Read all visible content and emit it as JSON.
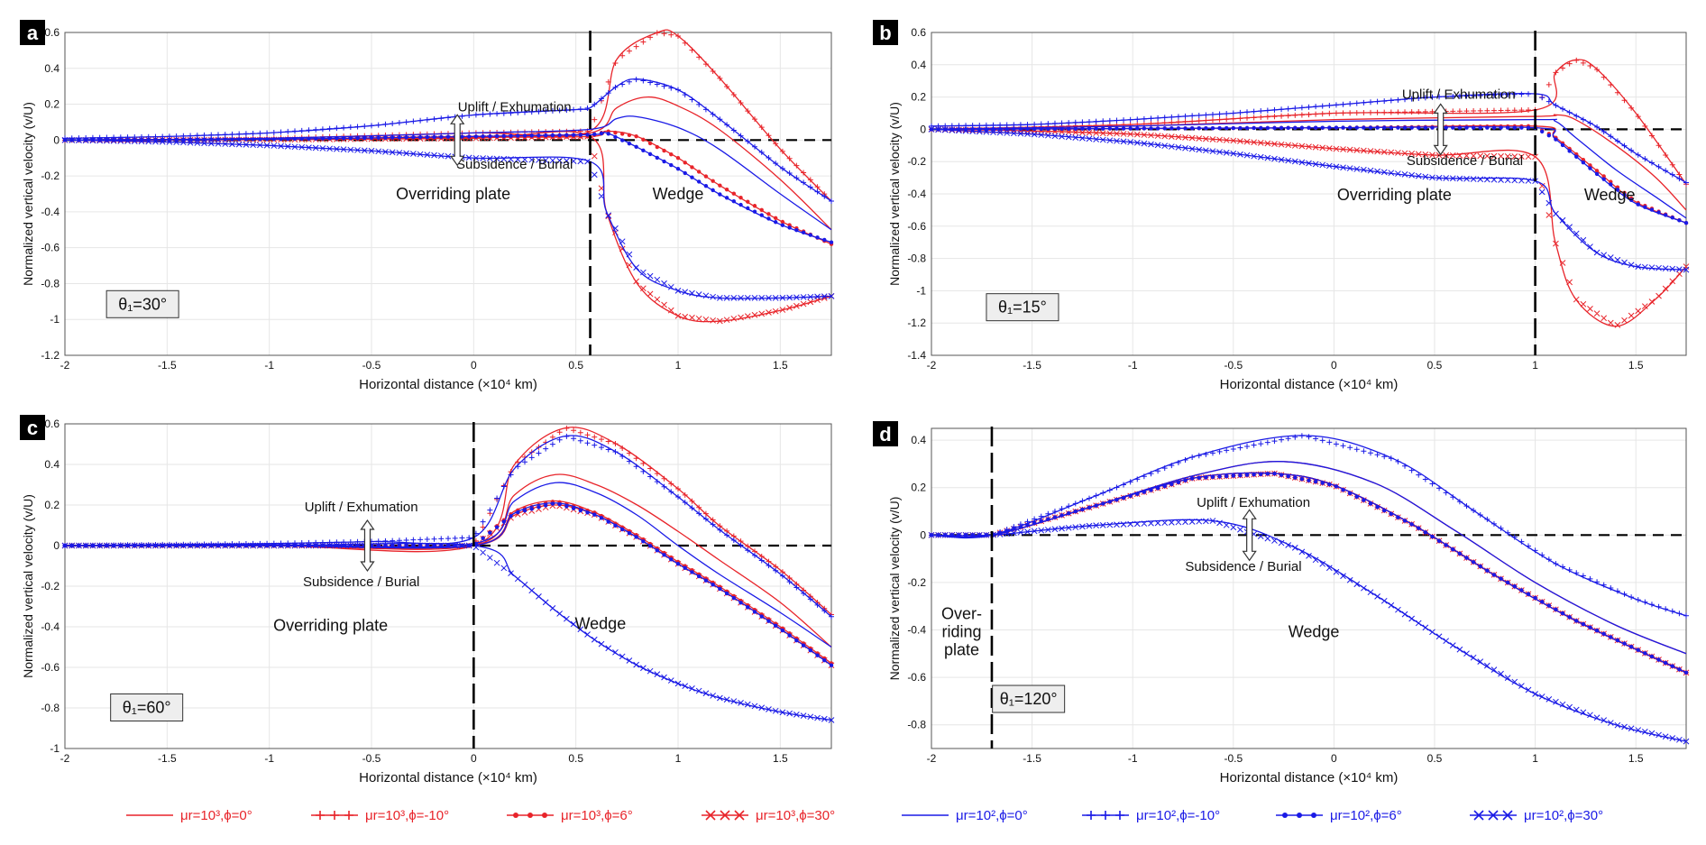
{
  "legend": {
    "entries": [
      {
        "label": "μr=10³,ϕ=0°",
        "color": "#e8242a",
        "marker": "none"
      },
      {
        "label": "μr=10³,ϕ=-10°",
        "color": "#e8242a",
        "marker": "plus"
      },
      {
        "label": "μr=10³,ϕ=6°",
        "color": "#e8242a",
        "marker": "dot"
      },
      {
        "label": "μr=10³,ϕ=30°",
        "color": "#e8242a",
        "marker": "x"
      },
      {
        "label": "μr=10²,ϕ=0°",
        "color": "#1a1ae6",
        "marker": "none"
      },
      {
        "label": "μr=10²,ϕ=-10°",
        "color": "#1a1ae6",
        "marker": "plus"
      },
      {
        "label": "μr=10²,ϕ=6°",
        "color": "#1a1ae6",
        "marker": "dot"
      },
      {
        "label": "μr=10²,ϕ=30°",
        "color": "#1a1ae6",
        "marker": "x"
      }
    ]
  },
  "chart_data": [
    {
      "panel": "a",
      "type": "line",
      "xlabel": "Horizontal distance (×10⁴ km)",
      "ylabel": "Normalized vertical velocity (v/U)",
      "xlim": [
        -2,
        1.75
      ],
      "ylim": [
        -1.2,
        0.6
      ],
      "xticks": [
        -2,
        -1.5,
        -1,
        -0.5,
        0,
        0.5,
        1,
        1.5
      ],
      "yticks": [
        -1.2,
        -1,
        -0.8,
        -0.6,
        -0.4,
        -0.2,
        0,
        0.2,
        0.4,
        0.6
      ],
      "boundary_x": 0.57,
      "theta_label": "θ₁=30°",
      "annotations": {
        "uplift": "Uplift / Exhumation",
        "subsidence": "Subsidence / Burial",
        "region_left": "Overriding plate",
        "region_right": "Wedge"
      },
      "series": [
        {
          "name": "μr=10³,ϕ=0°",
          "x": [
            -2,
            -1,
            0,
            0.57,
            0.7,
            0.85,
            1.0,
            1.2,
            1.5,
            1.75
          ],
          "y": [
            0,
            0.005,
            0.02,
            0.04,
            0.18,
            0.24,
            0.19,
            0.06,
            -0.22,
            -0.5
          ]
        },
        {
          "name": "μr=10³,ϕ=-10°",
          "x": [
            -2,
            -1,
            0,
            0.57,
            0.7,
            0.9,
            1.0,
            1.2,
            1.5,
            1.75
          ],
          "y": [
            0,
            0.01,
            0.04,
            0.05,
            0.45,
            0.6,
            0.58,
            0.35,
            -0.05,
            -0.34
          ]
        },
        {
          "name": "μr=10³,ϕ=6°",
          "x": [
            -2,
            -1,
            0,
            0.57,
            0.65,
            0.8,
            1.0,
            1.2,
            1.5,
            1.75
          ],
          "y": [
            0,
            0.005,
            0.015,
            0.02,
            0.05,
            0.02,
            -0.1,
            -0.25,
            -0.45,
            -0.58
          ]
        },
        {
          "name": "μr=10³,ϕ=30°",
          "x": [
            -2,
            -1,
            0,
            0.57,
            0.65,
            0.8,
            1.0,
            1.2,
            1.5,
            1.75
          ],
          "y": [
            0,
            0.002,
            0.01,
            0.02,
            -0.4,
            -0.8,
            -0.98,
            -1.01,
            -0.95,
            -0.87
          ]
        },
        {
          "name": "μr=10²,ϕ=0°",
          "x": [
            -2,
            -1,
            0,
            0.57,
            0.7,
            0.8,
            1.0,
            1.2,
            1.5,
            1.75
          ],
          "y": [
            0,
            0.01,
            0.04,
            0.06,
            0.12,
            0.13,
            0.07,
            -0.05,
            -0.3,
            -0.5
          ]
        },
        {
          "name": "μr=10²,ϕ=-10°",
          "x": [
            -2,
            -1.5,
            -1,
            -0.5,
            0,
            0.5,
            0.57,
            0.7,
            0.8,
            1.0,
            1.2,
            1.5,
            1.75
          ],
          "y": [
            0.01,
            0.02,
            0.04,
            0.08,
            0.14,
            0.17,
            0.18,
            0.3,
            0.34,
            0.28,
            0.12,
            -0.15,
            -0.34
          ]
        },
        {
          "name": "μr=10²,ϕ=6°",
          "x": [
            -2,
            -1,
            0,
            0.57,
            0.65,
            0.8,
            1.0,
            1.2,
            1.5,
            1.75
          ],
          "y": [
            0,
            0.005,
            0.02,
            0.03,
            0.04,
            -0.04,
            -0.16,
            -0.3,
            -0.47,
            -0.57
          ]
        },
        {
          "name": "μr=10²,ϕ=30°",
          "x": [
            -2,
            -1.5,
            -1,
            -0.5,
            0,
            0.57,
            0.65,
            0.8,
            1.0,
            1.2,
            1.5,
            1.75
          ],
          "y": [
            0,
            -0.01,
            -0.03,
            -0.06,
            -0.1,
            -0.12,
            -0.4,
            -0.72,
            -0.84,
            -0.88,
            -0.88,
            -0.87
          ]
        }
      ]
    },
    {
      "panel": "b",
      "type": "line",
      "xlabel": "Horizontal distance (×10⁴ km)",
      "ylabel": "Normalized vertical velocity (v/U)",
      "xlim": [
        -2,
        1.75
      ],
      "ylim": [
        -1.4,
        0.6
      ],
      "xticks": [
        -2,
        -1.5,
        -1,
        -0.5,
        0,
        0.5,
        1,
        1.5
      ],
      "yticks": [
        -1.4,
        -1.2,
        -1,
        -0.8,
        -0.6,
        -0.4,
        -0.2,
        0,
        0.2,
        0.4,
        0.6
      ],
      "boundary_x": 1.0,
      "theta_label": "θ₁=15°",
      "annotations": {
        "uplift": "Uplift / Exhumation",
        "subsidence": "Subsidence / Burial",
        "region_left": "Overriding plate",
        "region_right": "Wedge"
      },
      "series": [
        {
          "name": "μr=10³,ϕ=0°",
          "x": [
            -2,
            -1,
            0,
            1.0,
            1.1,
            1.2,
            1.4,
            1.6,
            1.75
          ],
          "y": [
            0,
            0.02,
            0.06,
            0.08,
            0.09,
            0.06,
            -0.1,
            -0.3,
            -0.5
          ]
        },
        {
          "name": "μr=10³,ϕ=-10°",
          "x": [
            -2,
            -1,
            0,
            1.0,
            1.1,
            1.2,
            1.3,
            1.5,
            1.75
          ],
          "y": [
            0,
            0.03,
            0.1,
            0.12,
            0.35,
            0.43,
            0.38,
            0.1,
            -0.34
          ]
        },
        {
          "name": "μr=10³,ϕ=6°",
          "x": [
            -2,
            -1,
            0,
            1.0,
            1.1,
            1.3,
            1.5,
            1.75
          ],
          "y": [
            0,
            0.005,
            0.01,
            0.02,
            -0.05,
            -0.25,
            -0.45,
            -0.58
          ]
        },
        {
          "name": "μr=10³,ϕ=30°",
          "x": [
            -2,
            -1.5,
            -1,
            -0.5,
            0,
            0.5,
            1.0,
            1.1,
            1.2,
            1.4,
            1.6,
            1.75
          ],
          "y": [
            0,
            -0.01,
            -0.03,
            -0.07,
            -0.12,
            -0.16,
            -0.17,
            -0.7,
            -1.05,
            -1.22,
            -1.05,
            -0.85
          ]
        },
        {
          "name": "μr=10²,ϕ=0°",
          "x": [
            -2,
            -1,
            0,
            1.0,
            1.1,
            1.2,
            1.4,
            1.6,
            1.75
          ],
          "y": [
            0,
            0.02,
            0.05,
            0.06,
            0.05,
            -0.05,
            -0.25,
            -0.42,
            -0.55
          ]
        },
        {
          "name": "μr=10²,ϕ=-10°",
          "x": [
            -2,
            -1.5,
            -1,
            -0.5,
            0,
            0.5,
            1.0,
            1.1,
            1.3,
            1.5,
            1.75
          ],
          "y": [
            0.02,
            0.03,
            0.06,
            0.1,
            0.15,
            0.2,
            0.22,
            0.15,
            0.02,
            -0.15,
            -0.33
          ]
        },
        {
          "name": "μr=10²,ϕ=6°",
          "x": [
            -2,
            -1,
            0,
            1.0,
            1.1,
            1.3,
            1.5,
            1.75
          ],
          "y": [
            0,
            0.005,
            0.01,
            0.01,
            -0.06,
            -0.27,
            -0.46,
            -0.58
          ]
        },
        {
          "name": "μr=10²,ϕ=30°",
          "x": [
            -2,
            -1.5,
            -1,
            -0.5,
            0,
            0.5,
            1.0,
            1.1,
            1.3,
            1.5,
            1.75
          ],
          "y": [
            0,
            -0.03,
            -0.08,
            -0.15,
            -0.23,
            -0.3,
            -0.32,
            -0.52,
            -0.76,
            -0.85,
            -0.87
          ]
        }
      ]
    },
    {
      "panel": "c",
      "type": "line",
      "xlabel": "Horizontal distance (×10⁴ km)",
      "ylabel": "Normalized vertical velocity (v/U)",
      "xlim": [
        -2,
        1.75
      ],
      "ylim": [
        -1,
        0.6
      ],
      "xticks": [
        -2,
        -1.5,
        -1,
        -0.5,
        0,
        0.5,
        1,
        1.5
      ],
      "yticks": [
        -1,
        -0.8,
        -0.6,
        -0.4,
        -0.2,
        0,
        0.2,
        0.4,
        0.6
      ],
      "boundary_x": 0.0,
      "theta_label": "θ₁=60°",
      "annotations": {
        "uplift": "Uplift / Exhumation",
        "subsidence": "Subsidence / Burial",
        "region_left": "Overriding plate",
        "region_right": "Wedge"
      },
      "series": [
        {
          "name": "μr=10³,ϕ=0°",
          "x": [
            -2,
            -1,
            0,
            0.2,
            0.4,
            0.6,
            0.8,
            1.0,
            1.2,
            1.5,
            1.75
          ],
          "y": [
            0,
            0,
            0,
            0.25,
            0.35,
            0.3,
            0.2,
            0.07,
            -0.07,
            -0.28,
            -0.5
          ]
        },
        {
          "name": "μr=10³,ϕ=-10°",
          "x": [
            -2,
            -1,
            0,
            0.2,
            0.45,
            0.7,
            1.0,
            1.2,
            1.5,
            1.75
          ],
          "y": [
            0,
            0,
            0,
            0.4,
            0.58,
            0.5,
            0.28,
            0.1,
            -0.12,
            -0.34
          ]
        },
        {
          "name": "μr=10³,ϕ=6°",
          "x": [
            -2,
            -1,
            0,
            0.2,
            0.4,
            0.6,
            0.8,
            1.0,
            1.2,
            1.5,
            1.75
          ],
          "y": [
            0,
            0,
            0,
            0.17,
            0.22,
            0.16,
            0.05,
            -0.08,
            -0.2,
            -0.4,
            -0.58
          ]
        },
        {
          "name": "μr=10³,ϕ=30°",
          "x": [
            -2,
            -1,
            0,
            0.2,
            0.4,
            0.6,
            0.8,
            1.0,
            1.2,
            1.5,
            1.75
          ],
          "y": [
            0,
            0,
            0,
            0.15,
            0.2,
            0.15,
            0.04,
            -0.09,
            -0.21,
            -0.41,
            -0.59
          ]
        },
        {
          "name": "μr=10²,ϕ=0°",
          "x": [
            -2,
            -1,
            0,
            0.2,
            0.4,
            0.6,
            0.8,
            1.0,
            1.2,
            1.5,
            1.75
          ],
          "y": [
            0,
            0.005,
            0.01,
            0.22,
            0.31,
            0.26,
            0.15,
            0.0,
            -0.14,
            -0.33,
            -0.5
          ]
        },
        {
          "name": "μr=10²,ϕ=-10°",
          "x": [
            -2,
            -1.5,
            -1,
            -0.5,
            0,
            0.2,
            0.45,
            0.7,
            1.0,
            1.2,
            1.5,
            1.75
          ],
          "y": [
            0,
            0.005,
            0.01,
            0.02,
            0.04,
            0.38,
            0.54,
            0.46,
            0.24,
            0.08,
            -0.14,
            -0.35
          ]
        },
        {
          "name": "μr=10²,ϕ=6°",
          "x": [
            -2,
            -1,
            0,
            0.2,
            0.4,
            0.6,
            0.8,
            1.0,
            1.2,
            1.5,
            1.75
          ],
          "y": [
            0,
            0,
            0,
            0.16,
            0.21,
            0.15,
            0.04,
            -0.09,
            -0.21,
            -0.41,
            -0.59
          ]
        },
        {
          "name": "μr=10²,ϕ=30°",
          "x": [
            -2,
            -1,
            0,
            0.2,
            0.4,
            0.6,
            0.8,
            1.0,
            1.2,
            1.5,
            1.75
          ],
          "y": [
            0,
            0,
            0,
            -0.15,
            -0.32,
            -0.47,
            -0.59,
            -0.68,
            -0.75,
            -0.82,
            -0.86
          ]
        }
      ]
    },
    {
      "panel": "d",
      "type": "line",
      "xlabel": "Horizontal distance (×10⁴ km)",
      "ylabel": "Normalized vertical velocity (v/U)",
      "xlim": [
        -2,
        1.75
      ],
      "ylim": [
        -0.9,
        0.45
      ],
      "xticks": [
        -2,
        -1.5,
        -1,
        -0.5,
        0,
        0.5,
        1,
        1.5
      ],
      "yticks": [
        -0.8,
        -0.6,
        -0.4,
        -0.2,
        0,
        0.2,
        0.4
      ],
      "boundary_x": -1.7,
      "theta_label": "θ₁=120°",
      "annotations": {
        "uplift": "Uplift / Exhumation",
        "subsidence": "Subsidence / Burial",
        "region_left": "Over-\nriding\nplate",
        "region_right": "Wedge"
      },
      "series": [
        {
          "name": "μr=10³,ϕ=0°",
          "x": [
            -2,
            -1.7,
            -1.2,
            -0.7,
            -0.25,
            0.2,
            0.6,
            1.0,
            1.4,
            1.75
          ],
          "y": [
            0,
            0,
            0.12,
            0.25,
            0.31,
            0.22,
            0.02,
            -0.2,
            -0.38,
            -0.5
          ]
        },
        {
          "name": "μr=10³,ϕ=-10°",
          "x": [
            -2,
            -1.7,
            -1.2,
            -0.7,
            -0.3,
            0,
            0.4,
            0.8,
            1.2,
            1.75
          ],
          "y": [
            0,
            0,
            0.12,
            0.24,
            0.26,
            0.21,
            0.04,
            -0.17,
            -0.36,
            -0.58
          ]
        },
        {
          "name": "μr=10³,ϕ=6°",
          "x": [
            -2,
            -1.7,
            -1.2,
            -0.7,
            -0.3,
            0,
            0.4,
            0.8,
            1.2,
            1.75
          ],
          "y": [
            0,
            0,
            0.12,
            0.24,
            0.26,
            0.21,
            0.04,
            -0.17,
            -0.36,
            -0.58
          ]
        },
        {
          "name": "μr=10³,ϕ=30°",
          "x": [
            -2,
            -1.7,
            -1.2,
            -0.7,
            -0.3,
            0,
            0.4,
            0.8,
            1.2,
            1.75
          ],
          "y": [
            0,
            0,
            0.12,
            0.24,
            0.26,
            0.21,
            0.04,
            -0.17,
            -0.36,
            -0.58
          ]
        },
        {
          "name": "μr=10²,ϕ=0°",
          "x": [
            -2,
            -1.7,
            -1.2,
            -0.7,
            -0.25,
            0.2,
            0.6,
            1.0,
            1.4,
            1.75
          ],
          "y": [
            0,
            0,
            0.12,
            0.25,
            0.31,
            0.22,
            0.02,
            -0.2,
            -0.38,
            -0.5
          ]
        },
        {
          "name": "μr=10²,ϕ=-10°",
          "x": [
            -2,
            -1.7,
            -1.2,
            -0.7,
            -0.15,
            0.3,
            0.7,
            1.1,
            1.5,
            1.75
          ],
          "y": [
            0,
            0,
            0.16,
            0.33,
            0.42,
            0.32,
            0.1,
            -0.12,
            -0.27,
            -0.34
          ]
        },
        {
          "name": "μr=10²,ϕ=6°",
          "x": [
            -2,
            -1.7,
            -1.2,
            -0.7,
            -0.3,
            0,
            0.4,
            0.8,
            1.2,
            1.75
          ],
          "y": [
            0,
            0,
            0.12,
            0.24,
            0.26,
            0.21,
            0.04,
            -0.17,
            -0.36,
            -0.58
          ]
        },
        {
          "name": "μr=10²,ϕ=30°",
          "x": [
            -2,
            -1.7,
            -1.2,
            -0.6,
            -0.2,
            0.2,
            0.6,
            1.0,
            1.4,
            1.75
          ],
          "y": [
            0,
            0,
            0.04,
            0.06,
            -0.05,
            -0.25,
            -0.47,
            -0.67,
            -0.8,
            -0.87
          ]
        }
      ]
    }
  ]
}
